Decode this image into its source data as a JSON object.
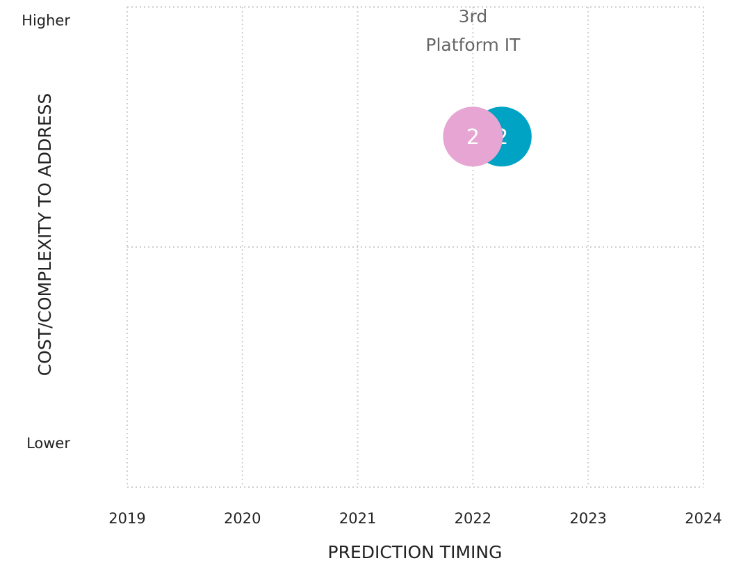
{
  "chart_data": {
    "type": "bubble",
    "x_label": "PREDICTION TIMING",
    "y_label": "COST/COMPLEXITY TO ADDRESS",
    "xlim": [
      2019,
      2024
    ],
    "xticks": [
      2019,
      2020,
      2021,
      2022,
      2023,
      2024
    ],
    "ylim": [
      0,
      100
    ],
    "yticks": [
      {
        "value": 9,
        "label": "Lower"
      },
      {
        "value": 97,
        "label": "Higher"
      }
    ],
    "grid": true,
    "points": [
      {
        "x": 2022.25,
        "y": 73,
        "size": 2,
        "color": "#00a3c4"
      },
      {
        "x": 2022,
        "y": 73,
        "size": 2,
        "color": "#e6a5d2",
        "label": "3rd Platform IT"
      }
    ]
  }
}
